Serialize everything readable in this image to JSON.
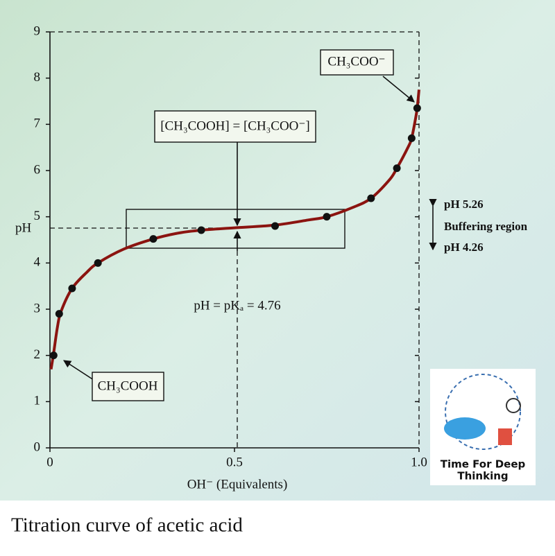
{
  "chart_data": {
    "type": "line",
    "caption": "Titration curve of acetic acid",
    "x_label": "OH⁻ (Equivalents)",
    "y_label": "pH",
    "xlim": [
      0,
      1
    ],
    "ylim": [
      0,
      9
    ],
    "xticks": [
      0,
      0.5,
      {
        "value": 1,
        "label": "1.0"
      }
    ],
    "yticks": [
      0,
      1,
      2,
      3,
      4,
      5,
      6,
      7,
      8,
      9
    ],
    "series": [
      {
        "style": "line",
        "color": "#8b1410",
        "x": [
          0.003,
          0.01,
          0.02,
          0.03,
          0.06,
          0.1,
          0.13,
          0.2,
          0.28,
          0.35,
          0.41,
          0.5,
          0.61,
          0.7,
          0.75,
          0.82,
          0.87,
          0.92,
          0.94,
          0.97,
          0.98,
          0.99,
          0.995,
          1.0
        ],
        "values": [
          1.7,
          2.05,
          2.6,
          2.95,
          3.45,
          3.8,
          4.0,
          4.3,
          4.52,
          4.65,
          4.71,
          4.76,
          4.82,
          4.93,
          5.0,
          5.2,
          5.4,
          5.8,
          6.05,
          6.5,
          6.7,
          7.1,
          7.35,
          7.75
        ]
      },
      {
        "style": "markers",
        "color": "#111111",
        "x": [
          0.01,
          0.025,
          0.06,
          0.13,
          0.28,
          0.41,
          0.61,
          0.75,
          0.87,
          0.94,
          0.98,
          0.995
        ],
        "values": [
          2.0,
          2.9,
          3.45,
          4.0,
          4.52,
          4.71,
          4.8,
          5.0,
          5.4,
          6.05,
          6.7,
          7.35
        ]
      }
    ],
    "annotations": [
      "CH₃COO⁻",
      "[CH₃COOH] = [CH₃COO⁻]",
      "pH = pKₐ = 4.76",
      "CH₃COOH",
      "pH 5.26",
      "Buffering region",
      "pH 4.26"
    ],
    "logo": [
      "Time For Deep",
      "Thinking"
    ]
  }
}
